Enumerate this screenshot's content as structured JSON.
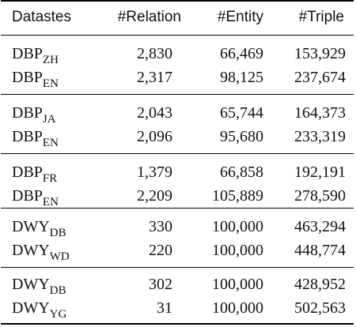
{
  "header": [
    "Datastes",
    "#Relation",
    "#Entity",
    "#Triple"
  ],
  "groups": [
    [
      {
        "base": "DBP",
        "sub": "ZH",
        "relation": "2,830",
        "entity": "66,469",
        "triple": "153,929"
      },
      {
        "base": "DBP",
        "sub": "EN",
        "relation": "2,317",
        "entity": "98,125",
        "triple": "237,674"
      }
    ],
    [
      {
        "base": "DBP",
        "sub": "JA",
        "relation": "2,043",
        "entity": "65,744",
        "triple": "164,373"
      },
      {
        "base": "DBP",
        "sub": "EN",
        "relation": "2,096",
        "entity": "95,680",
        "triple": "233,319"
      }
    ],
    [
      {
        "base": "DBP",
        "sub": "FR",
        "relation": "1,379",
        "entity": "66,858",
        "triple": "192,191"
      },
      {
        "base": "DBP",
        "sub": "EN",
        "relation": "2,209",
        "entity": "105,889",
        "triple": "278,590"
      }
    ],
    [
      {
        "base": "DWY",
        "sub": "DB",
        "relation": "330",
        "entity": "100,000",
        "triple": "463,294"
      },
      {
        "base": "DWY",
        "sub": "WD",
        "relation": "220",
        "entity": "100,000",
        "triple": "448,774"
      }
    ],
    [
      {
        "base": "DWY",
        "sub": "DB",
        "relation": "302",
        "entity": "100,000",
        "triple": "428,952"
      },
      {
        "base": "DWY",
        "sub": "YG",
        "relation": "31",
        "entity": "100,000",
        "triple": "502,563"
      }
    ]
  ]
}
